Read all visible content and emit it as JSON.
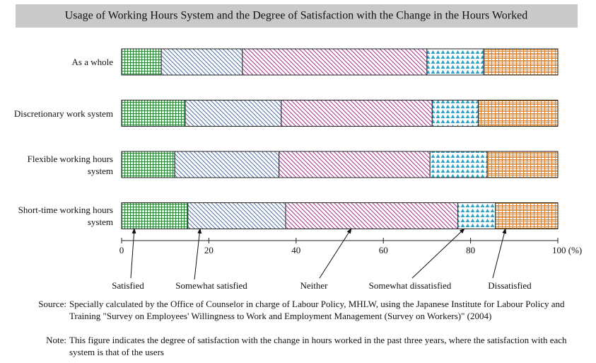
{
  "chart_data": {
    "type": "stacked-bar-horizontal",
    "title": "Usage of Working Hours System and the Degree of Satisfaction with the Change in the Hours Worked",
    "categories": [
      "As a whole",
      "Discretionary work system",
      "Flexible working hours system",
      "Short-time working hours system"
    ],
    "series": [
      {
        "name": "Satisfied",
        "color": "#2a8a3a",
        "values": [
          9.1,
          14.6,
          12.2,
          15.2
        ]
      },
      {
        "name": "Somewhat satisfied",
        "color": "#4f6fa8",
        "values": [
          18.6,
          22.0,
          23.9,
          22.4
        ]
      },
      {
        "name": "Neither",
        "color": "#a8338f",
        "values": [
          42.3,
          34.6,
          34.6,
          39.5
        ]
      },
      {
        "name": "Somewhat dissatisfied",
        "color": "#2fa3c6",
        "values": [
          13.0,
          10.6,
          13.1,
          8.6
        ]
      },
      {
        "name": "Dissatisfied",
        "color": "#d9822b",
        "values": [
          17.0,
          18.2,
          16.2,
          14.3
        ]
      }
    ],
    "xlim": [
      0,
      100
    ],
    "xticks": [
      0,
      20,
      40,
      60,
      80,
      {
        "value": 100,
        "label": "100 (%)"
      }
    ],
    "source_label": "Source:",
    "source": "Specially calculated by the Office of Counselor in charge of Labour Policy, MHLW, using the Japanese Institute for Labour Policy and Training \"Survey on Employees' Willingness to Work and Employment Management (Survey on Workers)\" (2004)",
    "note_label": "Note:",
    "note": "This figure indicates the degree of satisfaction with the change in hours worked in the past three years, where the satisfaction with each system is that of the users"
  }
}
